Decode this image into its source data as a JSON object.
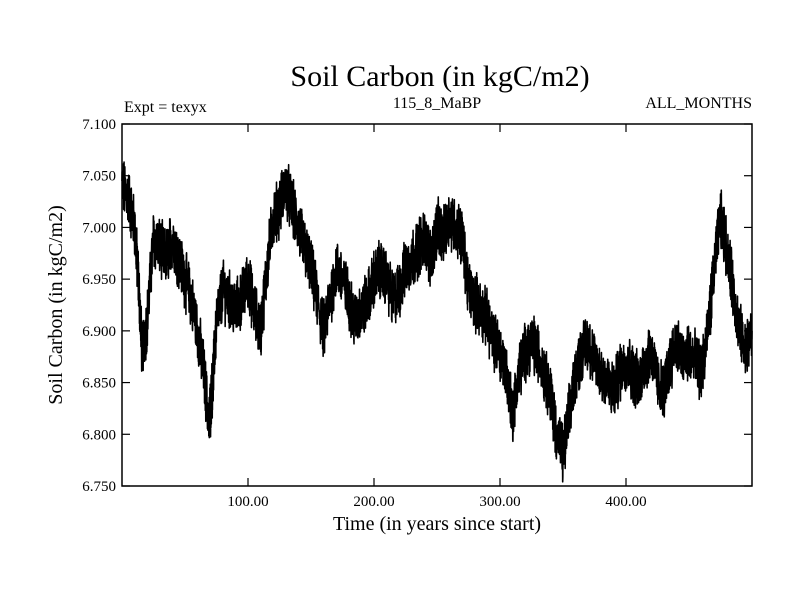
{
  "chart_data": {
    "type": "line",
    "title": "Soil Carbon (in kgC/m2)",
    "subtitle_left": "Expt = texyx",
    "subtitle_center": "115_8_MaBP",
    "subtitle_right": "ALL_MONTHS",
    "xlabel": "Time (in years since start)",
    "ylabel": "Soil Carbon (in kgC/m2)",
    "xlim": [
      0,
      500
    ],
    "ylim": [
      6.75,
      7.1
    ],
    "x_ticks": [
      100,
      200,
      300,
      400
    ],
    "x_tick_labels": [
      "100.00",
      "200.00",
      "300.00",
      "400.00"
    ],
    "y_ticks": [
      6.75,
      6.8,
      6.85,
      6.9,
      6.95,
      7.0,
      7.05,
      7.1
    ],
    "y_tick_labels": [
      "6.750",
      "6.800",
      "6.850",
      "6.900",
      "6.950",
      "7.000",
      "7.050",
      "7.100"
    ],
    "grid": false,
    "line_color": "#000000",
    "series": [
      {
        "x": [
          0,
          5,
          10,
          13,
          16,
          20,
          25,
          30,
          35,
          40,
          45,
          50,
          55,
          60,
          65,
          69,
          72,
          75,
          80,
          85,
          90,
          95,
          100,
          105,
          110,
          115,
          120,
          125,
          130,
          135,
          140,
          145,
          150,
          155,
          160,
          165,
          170,
          175,
          180,
          185,
          190,
          195,
          200,
          205,
          210,
          215,
          220,
          225,
          230,
          235,
          240,
          245,
          250,
          255,
          260,
          265,
          270,
          275,
          280,
          285,
          290,
          295,
          300,
          305,
          310,
          315,
          320,
          325,
          330,
          335,
          340,
          345,
          350,
          355,
          360,
          365,
          370,
          375,
          380,
          385,
          390,
          395,
          400,
          405,
          410,
          415,
          420,
          425,
          430,
          435,
          440,
          445,
          450,
          455,
          460,
          465,
          470,
          475,
          480,
          485,
          490,
          495,
          500
        ],
        "values": [
          7.04,
          7.03,
          7.0,
          6.95,
          6.88,
          6.91,
          6.99,
          6.98,
          6.97,
          6.99,
          6.97,
          6.95,
          6.93,
          6.9,
          6.86,
          6.81,
          6.85,
          6.91,
          6.94,
          6.93,
          6.92,
          6.93,
          6.95,
          6.92,
          6.9,
          6.96,
          7.01,
          7.02,
          7.04,
          7.02,
          7.0,
          6.98,
          6.96,
          6.93,
          6.9,
          6.93,
          6.96,
          6.95,
          6.93,
          6.91,
          6.92,
          6.93,
          6.95,
          6.96,
          6.95,
          6.93,
          6.94,
          6.96,
          6.97,
          6.98,
          6.99,
          6.97,
          7.0,
          6.99,
          7.01,
          7.0,
          6.99,
          6.94,
          6.93,
          6.92,
          6.91,
          6.89,
          6.88,
          6.86,
          6.82,
          6.86,
          6.88,
          6.89,
          6.88,
          6.86,
          6.84,
          6.8,
          6.78,
          6.82,
          6.86,
          6.88,
          6.89,
          6.87,
          6.86,
          6.85,
          6.84,
          6.86,
          6.87,
          6.86,
          6.85,
          6.87,
          6.88,
          6.85,
          6.84,
          6.87,
          6.89,
          6.87,
          6.88,
          6.87,
          6.86,
          6.9,
          6.96,
          7.01,
          6.98,
          6.94,
          6.9,
          6.88,
          6.9
        ]
      }
    ]
  }
}
